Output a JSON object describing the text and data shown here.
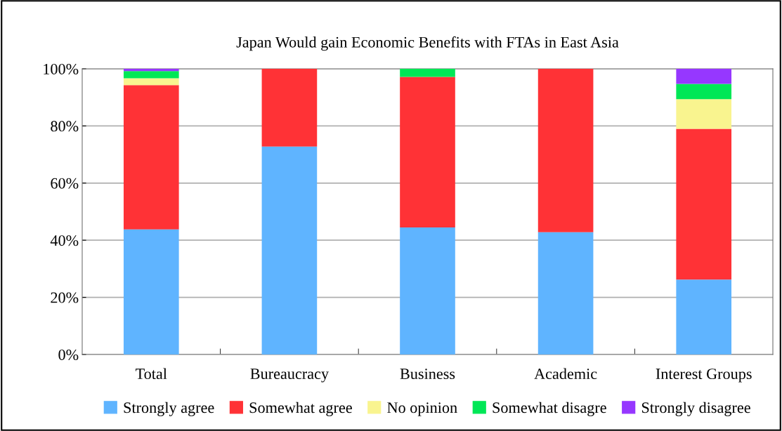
{
  "chart_data": {
    "type": "bar",
    "title": "Japan Would gain Economic Benefits with FTAs in East Asia",
    "categories": [
      "Total",
      "Bureaucracy",
      "Business",
      "Academic",
      "Interest Groups"
    ],
    "stacked": true,
    "series": [
      {
        "name": "Strongly agree",
        "color": "#5fb4ff",
        "values": [
          43.8,
          72.8,
          44.5,
          42.8,
          26.2
        ]
      },
      {
        "name": "Somewhat agree",
        "color": "#ff3236",
        "values": [
          50.5,
          27.2,
          52.7,
          57.2,
          52.8
        ]
      },
      {
        "name": "No opinion",
        "color": "#f9f48f",
        "values": [
          2.4,
          0,
          0,
          0,
          10.4
        ]
      },
      {
        "name": "Somewhat disagre",
        "color": "#00e756",
        "values": [
          2.5,
          0,
          2.8,
          0,
          5.3
        ]
      },
      {
        "name": "Strongly disagree",
        "color": "#9637ff",
        "values": [
          0.8,
          0,
          0,
          0,
          5.3
        ]
      }
    ],
    "ylim": [
      0,
      100
    ],
    "yticks": [
      {
        "value": 0,
        "label": "0%"
      },
      {
        "value": 20,
        "label": "20%"
      },
      {
        "value": 40,
        "label": "40%"
      },
      {
        "value": 60,
        "label": "60%"
      },
      {
        "value": 80,
        "label": "80%"
      },
      {
        "value": 100,
        "label": "100%"
      }
    ],
    "grid": "y",
    "legend": "bottom"
  }
}
